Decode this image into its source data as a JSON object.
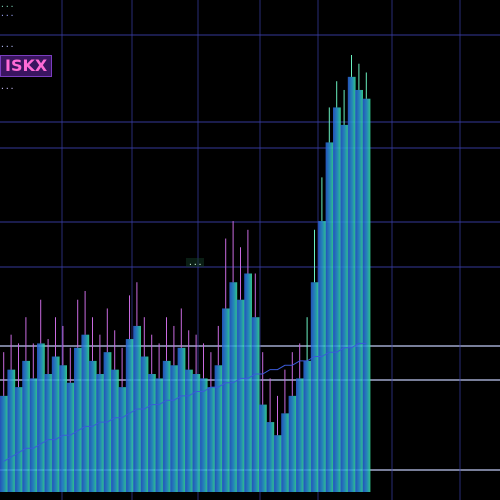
{
  "header": {
    "line1": "...",
    "line2": "...",
    "line3": "...",
    "line4": "..."
  },
  "ticker": "ISKX",
  "annotation": "...",
  "chart_data": {
    "type": "bar",
    "title": "",
    "xlabel": "",
    "ylabel": "",
    "ylim": [
      0,
      100
    ],
    "grid": true,
    "colors": {
      "background": "#000000",
      "bars_start": "#2a5fd8",
      "bars_end": "#39e6a0",
      "grid": "#3a3fa8",
      "wick": "#c96ae0"
    },
    "x_tick_labels": [
      "",
      "",
      "",
      "",
      "",
      "",
      "",
      "",
      ""
    ],
    "y_tick_labels": [
      "",
      "",
      "",
      "",
      "",
      "",
      "",
      "",
      "",
      "",
      "",
      ""
    ],
    "values": [
      22,
      28,
      24,
      30,
      26,
      34,
      27,
      31,
      29,
      25,
      33,
      36,
      30,
      27,
      32,
      28,
      24,
      35,
      38,
      31,
      27,
      26,
      30,
      29,
      33,
      28,
      27,
      26,
      24,
      29,
      42,
      48,
      44,
      50,
      40,
      20,
      16,
      13,
      18,
      22,
      26,
      30,
      48,
      62,
      80,
      88,
      84,
      95,
      92,
      90
    ],
    "highs": [
      32,
      36,
      34,
      40,
      34,
      44,
      35,
      40,
      38,
      33,
      44,
      46,
      40,
      36,
      42,
      37,
      33,
      45,
      48,
      40,
      36,
      34,
      40,
      38,
      42,
      37,
      36,
      34,
      32,
      38,
      58,
      62,
      56,
      60,
      50,
      32,
      26,
      22,
      28,
      32,
      34,
      40,
      60,
      72,
      88,
      94,
      92,
      100,
      98,
      96
    ],
    "baseline": [
      7,
      8,
      9,
      10,
      10,
      11,
      12,
      12,
      13,
      13,
      14,
      15,
      15,
      16,
      16,
      17,
      17,
      18,
      19,
      19,
      20,
      20,
      21,
      21,
      22,
      22,
      23,
      23,
      24,
      24,
      25,
      25,
      26,
      26,
      27,
      27,
      28,
      28,
      29,
      29,
      30,
      30,
      31,
      31,
      32,
      32,
      33,
      33,
      34,
      34
    ]
  }
}
